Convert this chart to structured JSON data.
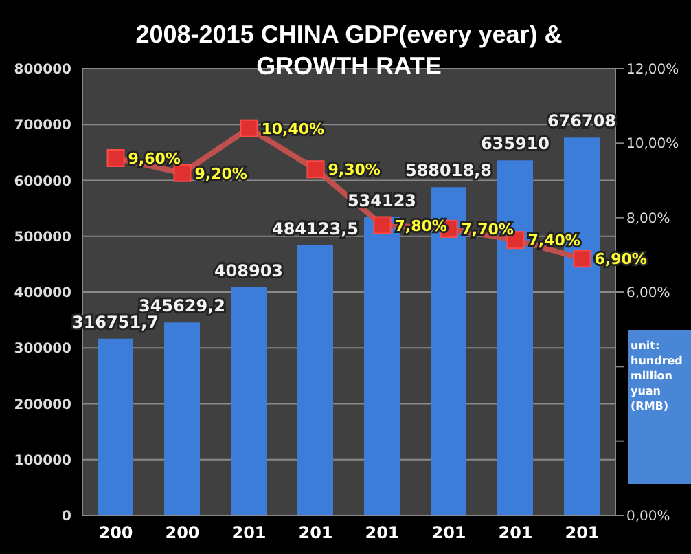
{
  "chart_data": {
    "type": "bar",
    "title": "2008-2015 CHINA GDP(every year) & GROWTH RATE",
    "categories": [
      "200",
      "200",
      "201",
      "201",
      "201",
      "201",
      "201",
      "201"
    ],
    "series": [
      {
        "color": "#3b7dd8",
        "values": [
          316751.7,
          345629.2,
          408903,
          484123.5,
          534123,
          588018.8,
          635910,
          676708
        ],
        "value_labels": [
          "316751,7",
          "345629,2",
          "408903",
          "484123,5",
          "534123",
          "588018,8",
          "635910",
          "676708"
        ]
      },
      {
        "type": "line",
        "axis": "y2",
        "color": "#c0504d",
        "marker": "square",
        "values": [
          9.6,
          9.2,
          10.4,
          9.3,
          7.8,
          7.7,
          7.4,
          6.9
        ],
        "value_labels": [
          "9,60%",
          "9,20%",
          "10,40%",
          "9,30%",
          "7,80%",
          "7,70%",
          "7,40%",
          "6,90%"
        ]
      }
    ],
    "ylim": [
      0,
      800000
    ],
    "yticks": [
      0,
      100000,
      200000,
      300000,
      400000,
      500000,
      600000,
      700000,
      800000
    ],
    "y2lim": [
      0,
      12
    ],
    "y2ticks": [
      {
        "value": 0,
        "label": "0,00%"
      },
      {
        "value": 2,
        "label": null
      },
      {
        "value": 4,
        "label": null
      },
      {
        "value": 6,
        "label": "6,00%"
      },
      {
        "value": 8,
        "label": "8,00%"
      },
      {
        "value": 10,
        "label": "10,00%"
      },
      {
        "value": 12,
        "label": "12,00%"
      }
    ],
    "grid": "y",
    "legend": false,
    "annotations": [
      "unit: hundred million yuan (RMB)"
    ]
  }
}
